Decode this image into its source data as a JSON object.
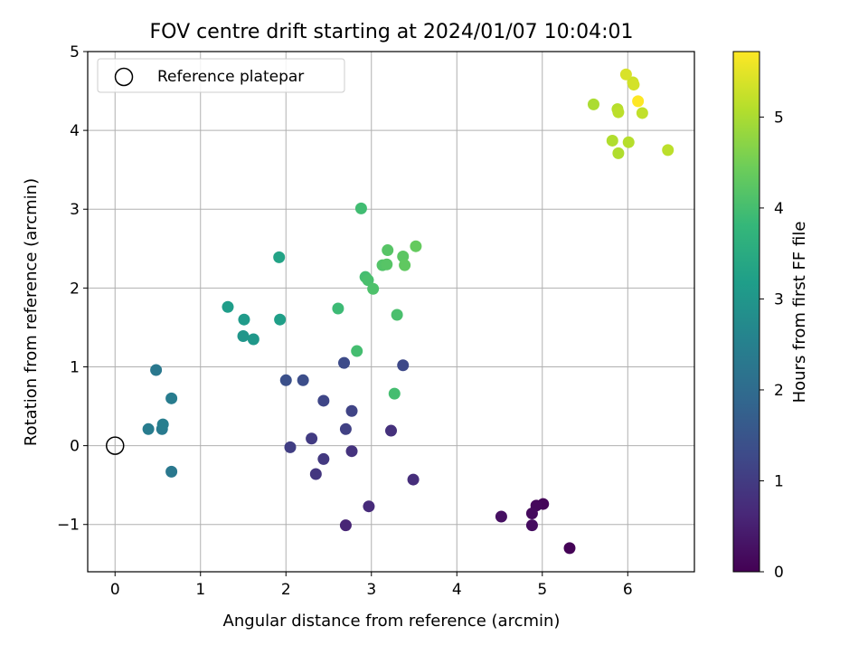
{
  "chart_data": {
    "type": "scatter",
    "title": "FOV centre drift starting at 2024/01/07 10:04:01",
    "xlabel": "Angular distance from reference (arcmin)",
    "ylabel": "Rotation from reference (arcmin)",
    "xlim": [
      -0.32,
      6.78
    ],
    "ylim": [
      -1.6,
      5.0
    ],
    "xticks": [
      0,
      1,
      2,
      3,
      4,
      5,
      6
    ],
    "xtick_labels": [
      "0",
      "1",
      "2",
      "3",
      "4",
      "5",
      "6"
    ],
    "yticks": [
      -1,
      0,
      1,
      2,
      3,
      4,
      5
    ],
    "ytick_labels": [
      "−1",
      "0",
      "1",
      "2",
      "3",
      "4",
      "5"
    ],
    "grid": true,
    "legend": {
      "placement": "upper-left",
      "entries": [
        "Reference platepar"
      ]
    },
    "reference_point": {
      "x": 0,
      "y": 0,
      "label": "Reference platepar"
    },
    "colorbar": {
      "label": "Hours from first FF file",
      "colormap": "viridis",
      "range": [
        0,
        5.72
      ],
      "ticks": [
        0,
        1,
        2,
        3,
        4,
        5
      ],
      "tick_labels": [
        "0",
        "1",
        "2",
        "3",
        "4",
        "5"
      ]
    },
    "points": [
      {
        "x": 5.32,
        "y": -1.3,
        "hours": 0.03
      },
      {
        "x": 5.01,
        "y": -0.74,
        "hours": 0.08
      },
      {
        "x": 4.93,
        "y": -0.76,
        "hours": 0.12
      },
      {
        "x": 4.88,
        "y": -0.86,
        "hours": 0.16
      },
      {
        "x": 4.88,
        "y": -1.01,
        "hours": 0.2
      },
      {
        "x": 4.52,
        "y": -0.9,
        "hours": 0.25
      },
      {
        "x": 2.7,
        "y": -1.01,
        "hours": 0.6
      },
      {
        "x": 2.97,
        "y": -0.77,
        "hours": 0.7
      },
      {
        "x": 3.49,
        "y": -0.43,
        "hours": 0.75
      },
      {
        "x": 3.23,
        "y": 0.19,
        "hours": 0.8
      },
      {
        "x": 2.77,
        "y": -0.07,
        "hours": 0.85
      },
      {
        "x": 2.35,
        "y": -0.36,
        "hours": 0.9
      },
      {
        "x": 2.44,
        "y": -0.17,
        "hours": 0.95
      },
      {
        "x": 2.3,
        "y": 0.09,
        "hours": 1.0
      },
      {
        "x": 2.05,
        "y": -0.02,
        "hours": 1.05
      },
      {
        "x": 2.7,
        "y": 0.21,
        "hours": 1.1
      },
      {
        "x": 2.77,
        "y": 0.44,
        "hours": 1.15
      },
      {
        "x": 2.44,
        "y": 0.57,
        "hours": 1.2
      },
      {
        "x": 3.37,
        "y": 1.02,
        "hours": 1.25
      },
      {
        "x": 2.68,
        "y": 1.05,
        "hours": 1.3
      },
      {
        "x": 2.2,
        "y": 0.83,
        "hours": 1.35
      },
      {
        "x": 2.0,
        "y": 0.83,
        "hours": 1.4
      },
      {
        "x": 0.66,
        "y": -0.33,
        "hours": 2.3
      },
      {
        "x": 0.55,
        "y": 0.21,
        "hours": 2.35
      },
      {
        "x": 0.39,
        "y": 0.21,
        "hours": 2.4
      },
      {
        "x": 0.56,
        "y": 0.27,
        "hours": 2.45
      },
      {
        "x": 0.66,
        "y": 0.6,
        "hours": 2.4
      },
      {
        "x": 0.48,
        "y": 0.96,
        "hours": 2.3
      },
      {
        "x": 1.5,
        "y": 1.39,
        "hours": 3.0
      },
      {
        "x": 1.62,
        "y": 1.35,
        "hours": 3.05
      },
      {
        "x": 1.51,
        "y": 1.6,
        "hours": 3.1
      },
      {
        "x": 1.32,
        "y": 1.76,
        "hours": 3.15
      },
      {
        "x": 1.93,
        "y": 1.6,
        "hours": 3.2
      },
      {
        "x": 1.92,
        "y": 2.39,
        "hours": 3.3
      },
      {
        "x": 2.61,
        "y": 1.74,
        "hours": 3.9
      },
      {
        "x": 2.83,
        "y": 1.2,
        "hours": 4.0
      },
      {
        "x": 3.27,
        "y": 0.66,
        "hours": 4.0
      },
      {
        "x": 3.3,
        "y": 1.66,
        "hours": 4.05
      },
      {
        "x": 2.88,
        "y": 3.01,
        "hours": 3.95
      },
      {
        "x": 2.93,
        "y": 2.14,
        "hours": 4.0
      },
      {
        "x": 2.96,
        "y": 2.1,
        "hours": 4.05
      },
      {
        "x": 3.02,
        "y": 1.99,
        "hours": 4.1
      },
      {
        "x": 3.13,
        "y": 2.29,
        "hours": 4.15
      },
      {
        "x": 3.19,
        "y": 2.48,
        "hours": 4.2
      },
      {
        "x": 3.18,
        "y": 2.3,
        "hours": 4.2
      },
      {
        "x": 3.37,
        "y": 2.4,
        "hours": 4.25
      },
      {
        "x": 3.39,
        "y": 2.29,
        "hours": 4.3
      },
      {
        "x": 3.52,
        "y": 2.53,
        "hours": 4.35
      },
      {
        "x": 5.6,
        "y": 4.33,
        "hours": 5.0
      },
      {
        "x": 5.82,
        "y": 3.87,
        "hours": 5.05
      },
      {
        "x": 5.88,
        "y": 4.27,
        "hours": 5.1
      },
      {
        "x": 5.89,
        "y": 4.23,
        "hours": 5.15
      },
      {
        "x": 5.89,
        "y": 3.71,
        "hours": 5.05
      },
      {
        "x": 6.01,
        "y": 3.85,
        "hours": 5.1
      },
      {
        "x": 6.47,
        "y": 3.75,
        "hours": 5.15
      },
      {
        "x": 6.17,
        "y": 4.22,
        "hours": 5.2
      },
      {
        "x": 6.06,
        "y": 4.61,
        "hours": 5.3
      },
      {
        "x": 6.07,
        "y": 4.58,
        "hours": 5.35
      },
      {
        "x": 5.98,
        "y": 4.71,
        "hours": 5.4
      },
      {
        "x": 6.12,
        "y": 4.37,
        "hours": 5.72
      }
    ]
  }
}
